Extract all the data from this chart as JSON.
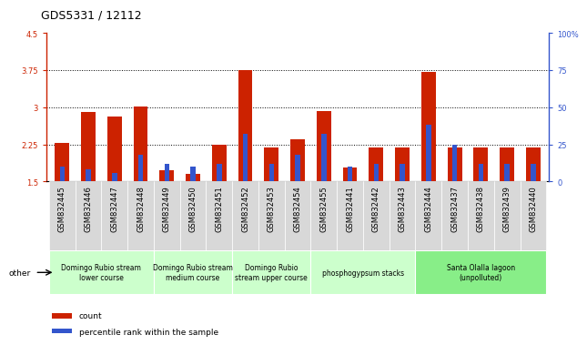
{
  "title": "GDS5331 / 12112",
  "samples": [
    "GSM832445",
    "GSM832446",
    "GSM832447",
    "GSM832448",
    "GSM832449",
    "GSM832450",
    "GSM832451",
    "GSM832452",
    "GSM832453",
    "GSM832454",
    "GSM832455",
    "GSM832441",
    "GSM832442",
    "GSM832443",
    "GSM832444",
    "GSM832437",
    "GSM832438",
    "GSM832439",
    "GSM832440"
  ],
  "count_values": [
    2.28,
    2.9,
    2.82,
    3.02,
    1.72,
    1.65,
    2.25,
    3.75,
    2.18,
    2.35,
    2.92,
    1.78,
    2.18,
    2.18,
    3.72,
    2.18,
    2.18,
    2.18,
    2.18
  ],
  "percentile_values": [
    10,
    8,
    6,
    18,
    12,
    10,
    12,
    32,
    12,
    18,
    32,
    10,
    12,
    12,
    38,
    25,
    12,
    12,
    12
  ],
  "ylim_left": [
    1.5,
    4.5
  ],
  "ylim_right": [
    0,
    100
  ],
  "yticks_left": [
    1.5,
    2.25,
    3.0,
    3.75,
    4.5
  ],
  "yticks_right": [
    0,
    25,
    50,
    75,
    100
  ],
  "ytick_labels_left": [
    "1.5",
    "2.25",
    "3",
    "3.75",
    "4.5"
  ],
  "ytick_labels_right": [
    "0",
    "25",
    "50",
    "75",
    "100%"
  ],
  "hlines": [
    2.25,
    3.0,
    3.75
  ],
  "bar_color_red": "#cc2200",
  "bar_color_blue": "#3355cc",
  "groups": [
    {
      "label": "Domingo Rubio stream\nlower course",
      "start": 0,
      "end": 3,
      "color": "#ccffcc"
    },
    {
      "label": "Domingo Rubio stream\nmedium course",
      "start": 4,
      "end": 6,
      "color": "#ccffcc"
    },
    {
      "label": "Domingo Rubio\nstream upper course",
      "start": 7,
      "end": 9,
      "color": "#ccffcc"
    },
    {
      "label": "phosphogypsum stacks",
      "start": 10,
      "end": 13,
      "color": "#ccffcc"
    },
    {
      "label": "Santa Olalla lagoon\n(unpolluted)",
      "start": 14,
      "end": 18,
      "color": "#88ee88"
    }
  ],
  "legend_count_label": "count",
  "legend_percentile_label": "percentile rank within the sample",
  "bar_width": 0.55,
  "title_fontsize": 9,
  "tick_fontsize": 6,
  "group_label_fontsize": 5.5,
  "left_axis_color": "#cc2200",
  "right_axis_color": "#3355cc",
  "xticklabel_bg": "#d8d8d8"
}
